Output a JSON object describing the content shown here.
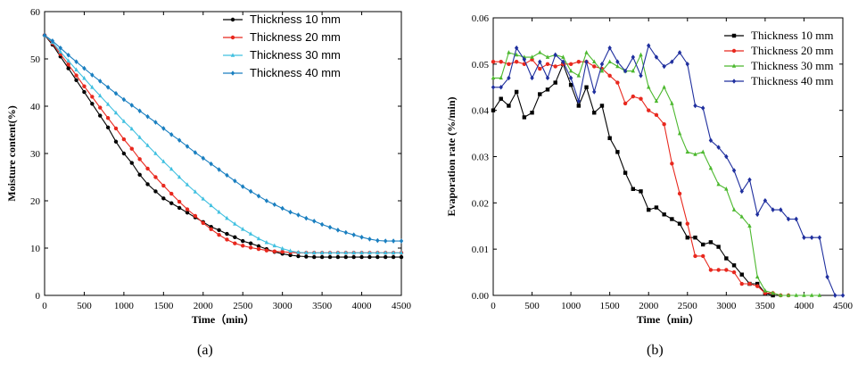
{
  "chart_data": [
    {
      "panel_label": "(a)",
      "type": "line",
      "xlabel": "Time（min）",
      "ylabel": "Moisture content(%)",
      "xlim": [
        0,
        4500
      ],
      "ylim": [
        0,
        60
      ],
      "xticks": [
        0,
        500,
        1000,
        1500,
        2000,
        2500,
        3000,
        3500,
        4000,
        4500
      ],
      "yticks": [
        0,
        10,
        20,
        30,
        40,
        50,
        60
      ],
      "legend_position": "top-right",
      "grid": false,
      "series": [
        {
          "name": "Thickness  10 mm",
          "color": "#000000",
          "marker": "circle",
          "x": [
            0,
            100,
            200,
            300,
            400,
            500,
            600,
            700,
            800,
            900,
            1000,
            1100,
            1200,
            1300,
            1400,
            1500,
            1600,
            1700,
            1800,
            1900,
            2000,
            2100,
            2200,
            2300,
            2400,
            2500,
            2600,
            2700,
            2800,
            2900,
            3000,
            3100,
            3200,
            3300,
            3400,
            3500,
            3600,
            3700,
            3800,
            3900,
            4000,
            4100,
            4200,
            4300,
            4400,
            4500
          ],
          "y": [
            55,
            53,
            50.5,
            48,
            45.5,
            43,
            40.5,
            38,
            35.5,
            32.5,
            30,
            28,
            25.5,
            23.5,
            22,
            20.5,
            19.5,
            18.5,
            17.5,
            16.5,
            15.5,
            14.5,
            13.8,
            13,
            12.3,
            11.5,
            11,
            10.4,
            9.8,
            9.2,
            8.8,
            8.5,
            8.3,
            8.2,
            8.1,
            8.1,
            8.1,
            8.1,
            8.1,
            8.1,
            8.1,
            8.1,
            8.1,
            8.1,
            8.1,
            8.1
          ]
        },
        {
          "name": "Thickness  20 mm",
          "color": "#e8281e",
          "marker": "circle",
          "x": [
            0,
            100,
            200,
            300,
            400,
            500,
            600,
            700,
            800,
            900,
            1000,
            1100,
            1200,
            1300,
            1400,
            1500,
            1600,
            1700,
            1800,
            1900,
            2000,
            2100,
            2200,
            2300,
            2400,
            2500,
            2600,
            2700,
            2800,
            2900,
            3000,
            3100,
            3200,
            3300,
            3400,
            3500,
            3600,
            3700,
            3800,
            3900,
            4000,
            4100,
            4200,
            4300,
            4400,
            4500
          ],
          "y": [
            55,
            53.3,
            51,
            48.8,
            46.5,
            44.2,
            42,
            39.7,
            37.5,
            35.3,
            33,
            31,
            28.8,
            26.8,
            25,
            23.2,
            21.5,
            19.8,
            18.2,
            16.8,
            15.3,
            14,
            12.8,
            11.8,
            11,
            10.5,
            10.1,
            9.8,
            9.5,
            9.3,
            9.2,
            9.1,
            9,
            9,
            9,
            9,
            9,
            9,
            9,
            9,
            9,
            9,
            9,
            9,
            9,
            9
          ]
        },
        {
          "name": "Thickness  30 mm",
          "color": "#40c0e0",
          "marker": "triangle",
          "x": [
            0,
            100,
            200,
            300,
            400,
            500,
            600,
            700,
            800,
            900,
            1000,
            1100,
            1200,
            1300,
            1400,
            1500,
            1600,
            1700,
            1800,
            1900,
            2000,
            2100,
            2200,
            2300,
            2400,
            2500,
            2600,
            2700,
            2800,
            2900,
            3000,
            3100,
            3200,
            3300,
            3400,
            3500,
            3600,
            3700,
            3800,
            3900,
            4000,
            4100,
            4200,
            4300,
            4400,
            4500
          ],
          "y": [
            55,
            53.5,
            51.5,
            49.6,
            47.7,
            45.9,
            44,
            42.2,
            40.4,
            38.6,
            36.8,
            35.2,
            33.4,
            31.7,
            30,
            28.3,
            26.7,
            25,
            23.4,
            21.9,
            20.4,
            19,
            17.6,
            16.3,
            15.1,
            14,
            13,
            12,
            11.2,
            10.5,
            9.9,
            9.4,
            9.1,
            9,
            9,
            9,
            9,
            9,
            9,
            9,
            9,
            9,
            9,
            9,
            9,
            9
          ]
        },
        {
          "name": "Thickness  40 mm",
          "color": "#1a7fc0",
          "marker": "diamond",
          "x": [
            0,
            100,
            200,
            300,
            400,
            500,
            600,
            700,
            800,
            900,
            1000,
            1100,
            1200,
            1300,
            1400,
            1500,
            1600,
            1700,
            1800,
            1900,
            2000,
            2100,
            2200,
            2300,
            2400,
            2500,
            2600,
            2700,
            2800,
            2900,
            3000,
            3100,
            3200,
            3300,
            3400,
            3500,
            3600,
            3700,
            3800,
            3900,
            4000,
            4100,
            4200,
            4300,
            4400,
            4500
          ],
          "y": [
            55,
            53.8,
            52.3,
            50.8,
            49.4,
            48,
            46.6,
            45.3,
            44,
            42.7,
            41.4,
            40.2,
            39,
            37.8,
            36.6,
            35.3,
            34,
            32.8,
            31.5,
            30.2,
            29,
            27.8,
            26.6,
            25.4,
            24.2,
            23,
            22,
            21,
            20,
            19.2,
            18.4,
            17.6,
            17,
            16.3,
            15.7,
            15,
            14.4,
            13.8,
            13.3,
            12.8,
            12.3,
            11.9,
            11.6,
            11.5,
            11.5,
            11.5
          ]
        }
      ]
    },
    {
      "panel_label": "(b)",
      "type": "line",
      "xlabel": "Time（min）",
      "ylabel": "Evaporation rate (%/min)",
      "xlim": [
        0,
        4500
      ],
      "ylim": [
        0,
        0.06
      ],
      "xticks": [
        0,
        500,
        1000,
        1500,
        2000,
        2500,
        3000,
        3500,
        4000,
        4500
      ],
      "yticks": [
        "0.00",
        "0.01",
        "0.02",
        "0.03",
        "0.04",
        "0.05",
        "0.06"
      ],
      "legend_position": "top-right",
      "grid": false,
      "series": [
        {
          "name": "Thickness  10 mm",
          "color": "#000000",
          "marker": "square",
          "x": [
            0,
            100,
            200,
            300,
            400,
            500,
            600,
            700,
            800,
            900,
            1000,
            1100,
            1200,
            1300,
            1400,
            1500,
            1600,
            1700,
            1800,
            1900,
            2000,
            2100,
            2200,
            2300,
            2400,
            2500,
            2600,
            2700,
            2800,
            2900,
            3000,
            3100,
            3200,
            3300,
            3400,
            3500,
            3600
          ],
          "y": [
            0.04,
            0.0425,
            0.041,
            0.044,
            0.0385,
            0.0395,
            0.0435,
            0.0445,
            0.046,
            0.05,
            0.0455,
            0.041,
            0.045,
            0.0395,
            0.041,
            0.034,
            0.031,
            0.0265,
            0.023,
            0.0225,
            0.0185,
            0.019,
            0.0175,
            0.0165,
            0.0155,
            0.0125,
            0.0125,
            0.011,
            0.0115,
            0.0105,
            0.008,
            0.0065,
            0.0045,
            0.0025,
            0.0025,
            0.0005,
            0.0
          ]
        },
        {
          "name": "Thickness  20 mm",
          "color": "#e8281e",
          "marker": "circle",
          "x": [
            0,
            100,
            200,
            300,
            400,
            500,
            600,
            700,
            800,
            900,
            1000,
            1100,
            1200,
            1300,
            1400,
            1500,
            1600,
            1700,
            1800,
            1900,
            2000,
            2100,
            2200,
            2300,
            2400,
            2500,
            2600,
            2700,
            2800,
            2900,
            3000,
            3100,
            3200,
            3300,
            3400,
            3500,
            3600,
            3700,
            3800
          ],
          "y": [
            0.0505,
            0.0505,
            0.05,
            0.0505,
            0.05,
            0.051,
            0.049,
            0.05,
            0.0495,
            0.05,
            0.05,
            0.0505,
            0.0505,
            0.0495,
            0.049,
            0.0475,
            0.046,
            0.0415,
            0.043,
            0.0425,
            0.04,
            0.039,
            0.037,
            0.0285,
            0.022,
            0.0155,
            0.0085,
            0.0085,
            0.0055,
            0.0055,
            0.0055,
            0.005,
            0.0025,
            0.0025,
            0.002,
            0.0005,
            0.0005,
            0.0,
            0.0
          ]
        },
        {
          "name": "Thickness  30 mm",
          "color": "#4cb82e",
          "marker": "triangle",
          "x": [
            0,
            100,
            200,
            300,
            400,
            500,
            600,
            700,
            800,
            900,
            1000,
            1100,
            1200,
            1300,
            1400,
            1500,
            1600,
            1700,
            1800,
            1900,
            2000,
            2100,
            2200,
            2300,
            2400,
            2500,
            2600,
            2700,
            2800,
            2900,
            3000,
            3100,
            3200,
            3300,
            3400,
            3500,
            3600,
            3700,
            3800,
            3900,
            4000,
            4100,
            4200
          ],
          "y": [
            0.047,
            0.047,
            0.0525,
            0.052,
            0.0515,
            0.0515,
            0.0525,
            0.0515,
            0.052,
            0.0515,
            0.0485,
            0.0475,
            0.0525,
            0.0505,
            0.0485,
            0.0505,
            0.0495,
            0.0485,
            0.0485,
            0.052,
            0.045,
            0.042,
            0.045,
            0.0415,
            0.035,
            0.031,
            0.0305,
            0.031,
            0.0275,
            0.024,
            0.023,
            0.0185,
            0.017,
            0.015,
            0.004,
            0.001,
            0.0005,
            0.0,
            0.0,
            0.0,
            0.0,
            0.0,
            0.0
          ]
        },
        {
          "name": "Thickness  40 mm",
          "color": "#1f2f9e",
          "marker": "diamond",
          "x": [
            0,
            100,
            200,
            300,
            400,
            500,
            600,
            700,
            800,
            900,
            1000,
            1100,
            1200,
            1300,
            1400,
            1500,
            1600,
            1700,
            1800,
            1900,
            2000,
            2100,
            2200,
            2300,
            2400,
            2500,
            2600,
            2700,
            2800,
            2900,
            3000,
            3100,
            3200,
            3300,
            3400,
            3500,
            3600,
            3700,
            3800,
            3900,
            4000,
            4100,
            4200,
            4300,
            4400,
            4500
          ],
          "y": [
            0.045,
            0.045,
            0.047,
            0.0535,
            0.051,
            0.047,
            0.0505,
            0.047,
            0.052,
            0.0505,
            0.047,
            0.042,
            0.0505,
            0.044,
            0.05,
            0.0535,
            0.0505,
            0.0485,
            0.0515,
            0.0475,
            0.054,
            0.0515,
            0.0495,
            0.0505,
            0.0525,
            0.05,
            0.041,
            0.0405,
            0.0335,
            0.032,
            0.03,
            0.027,
            0.0225,
            0.025,
            0.0175,
            0.0205,
            0.0185,
            0.0185,
            0.0165,
            0.0165,
            0.0125,
            0.0125,
            0.0125,
            0.004,
            0.0,
            0.0
          ]
        }
      ]
    }
  ]
}
